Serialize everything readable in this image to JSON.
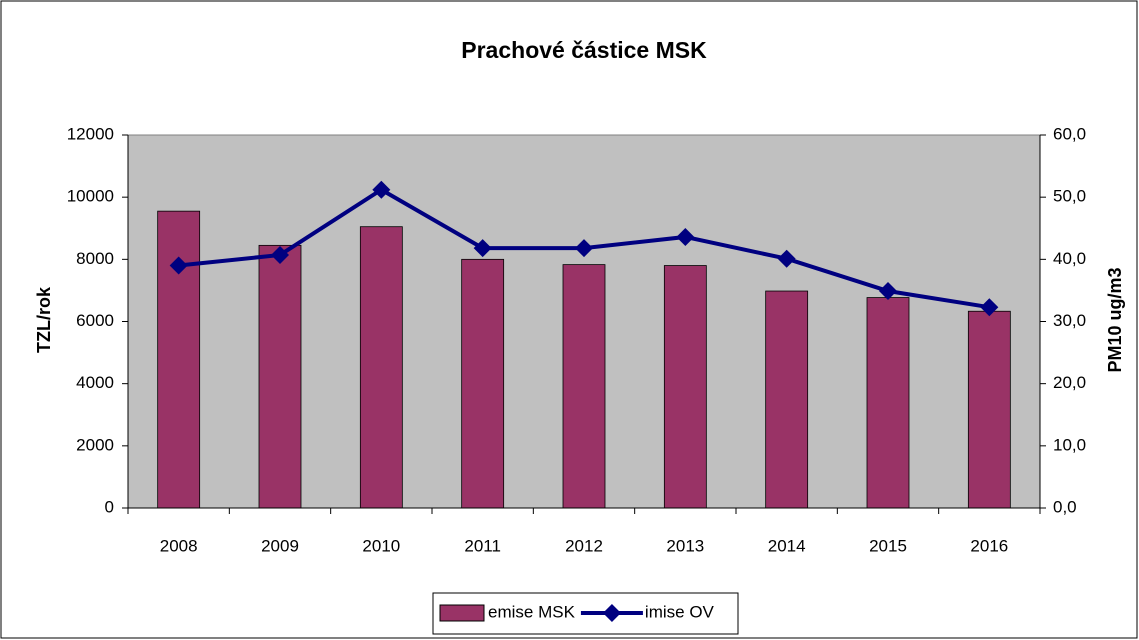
{
  "chart_data": {
    "type": "bar",
    "title": "Prachové částice MSK",
    "categories": [
      "2008",
      "2009",
      "2010",
      "2011",
      "2012",
      "2013",
      "2014",
      "2015",
      "2016"
    ],
    "series": [
      {
        "name": "emise MSK",
        "color": "#993366",
        "type": "bar",
        "values": [
          9550,
          8450,
          9050,
          8000,
          7830,
          7800,
          6980,
          6770,
          6330
        ]
      },
      {
        "name": "imise OV",
        "color": "#000080",
        "type": "line",
        "axis": "y2",
        "values": [
          39.0,
          40.7,
          51.2,
          41.8,
          41.8,
          43.6,
          40.1,
          34.9,
          32.3
        ]
      }
    ],
    "ylabel": "TZL/rok",
    "y2label": "PM10 ug/m3",
    "ylim": [
      0,
      12000
    ],
    "yticks": [
      0,
      2000,
      4000,
      6000,
      8000,
      10000,
      12000
    ],
    "y2lim": [
      0,
      60
    ],
    "y2ticks": [
      {
        "value": 0,
        "label": "0,0"
      },
      {
        "value": 10,
        "label": "10,0"
      },
      {
        "value": 20,
        "label": "20,0"
      },
      {
        "value": 30,
        "label": "30,0"
      },
      {
        "value": 40,
        "label": "40,0"
      },
      {
        "value": 50,
        "label": "50,0"
      },
      {
        "value": 60,
        "label": "60,0"
      }
    ],
    "grid": false,
    "legend": "bottom",
    "plot_background": "#c0c0c0"
  }
}
